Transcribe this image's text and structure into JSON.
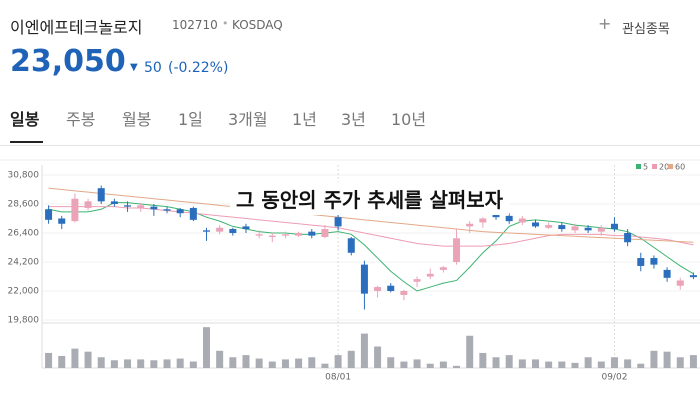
{
  "header": {
    "name": "이엔에프테크놀로지",
    "code": "102710",
    "market": "KOSDAQ",
    "watch": "관심종목",
    "price": "23,050",
    "change": "50",
    "change_pct": "(-0.22%)"
  },
  "tabs": [
    "일봉",
    "주봉",
    "월봉",
    "1일",
    "3개월",
    "1년",
    "3년",
    "10년"
  ],
  "overlay_text": "그 동안의 주가 추세를 살펴보자",
  "chart_data": {
    "type": "candlestick",
    "categories": [
      null,
      null,
      null,
      null,
      null,
      null,
      null,
      null,
      null,
      null,
      null,
      null,
      null,
      null,
      null,
      null,
      null,
      null,
      null,
      null,
      null,
      null,
      "08/01",
      null,
      null,
      null,
      null,
      null,
      null,
      null,
      null,
      null,
      null,
      null,
      null,
      null,
      null,
      null,
      null,
      null,
      null,
      null,
      null,
      "09/02",
      null,
      null,
      null,
      null,
      null,
      null
    ],
    "open": [
      28200,
      27500,
      27300,
      28300,
      29800,
      28800,
      28500,
      28300,
      28400,
      28200,
      28200,
      28300,
      26600,
      26500,
      26700,
      26900,
      26200,
      26100,
      26200,
      26200,
      26500,
      26100,
      27600,
      26000,
      24000,
      22000,
      22400,
      21700,
      22700,
      23100,
      23600,
      24200,
      26900,
      27200,
      27800,
      27700,
      27200,
      27200,
      26800,
      27000,
      26600,
      26800,
      26500,
      27100,
      26400,
      24500,
      24500,
      23600,
      22400,
      23200
    ],
    "high": [
      28500,
      27700,
      29400,
      29000,
      30000,
      29000,
      28800,
      28700,
      28600,
      28400,
      28300,
      28400,
      26800,
      27000,
      26800,
      27100,
      26600,
      26400,
      26500,
      26500,
      26700,
      27000,
      27800,
      26100,
      24300,
      22400,
      22600,
      22100,
      23100,
      23700,
      23900,
      26700,
      27300,
      27600,
      27900,
      27900,
      27700,
      27400,
      27200,
      27200,
      27100,
      27000,
      27000,
      27600,
      26700,
      24900,
      24700,
      23800,
      23000,
      23400
    ],
    "low": [
      27100,
      26700,
      27200,
      28100,
      28600,
      28400,
      28000,
      28000,
      27700,
      27900,
      27600,
      27300,
      25800,
      26300,
      26200,
      26400,
      26000,
      25700,
      26000,
      26100,
      26000,
      26000,
      26600,
      24700,
      20600,
      21500,
      21900,
      21300,
      22300,
      22900,
      23400,
      24000,
      26400,
      26800,
      27400,
      27100,
      27000,
      26800,
      26700,
      26500,
      26400,
      26400,
      26200,
      26500,
      25400,
      23500,
      23700,
      22700,
      22100,
      22900
    ],
    "close": [
      27400,
      27100,
      29000,
      28800,
      28800,
      28600,
      28400,
      28500,
      28200,
      28100,
      27900,
      27400,
      26500,
      26800,
      26400,
      26700,
      26300,
      26200,
      26300,
      26400,
      26200,
      26700,
      26900,
      24900,
      21800,
      22300,
      22000,
      22000,
      22900,
      23300,
      23800,
      26000,
      27100,
      27500,
      27600,
      27300,
      27500,
      26900,
      27000,
      26700,
      26900,
      26600,
      26800,
      26700,
      25700,
      23900,
      24000,
      23000,
      22800,
      23050
    ],
    "up_color": "#eba3b8",
    "down_color": "#2a6ebd",
    "ma": [
      {
        "name": "5",
        "color": "#3cb371",
        "values": [
          28200,
          28000,
          28000,
          28000,
          28200,
          28700,
          28700,
          28600,
          28500,
          28400,
          28200,
          28000,
          27600,
          27300,
          26900,
          26700,
          26500,
          26400,
          26400,
          26300,
          26300,
          26400,
          26500,
          26300,
          25500,
          24500,
          23500,
          22700,
          22000,
          22300,
          22600,
          22800,
          23800,
          24900,
          25800,
          26900,
          27300,
          27400,
          27300,
          27200,
          27000,
          26900,
          26800,
          26700,
          26500,
          26000,
          25300,
          24600,
          23900,
          23300
        ]
      },
      {
        "name": "20",
        "color": "#ee9cb4",
        "values": [
          28400,
          28400,
          28400,
          28400,
          28400,
          28400,
          28300,
          28300,
          28200,
          28100,
          28000,
          27900,
          27800,
          27700,
          27600,
          27500,
          27400,
          27300,
          27200,
          27100,
          27000,
          26900,
          26800,
          26600,
          26400,
          26200,
          26000,
          25800,
          25600,
          25500,
          25400,
          25400,
          25400,
          25400,
          25500,
          25600,
          25800,
          26000,
          26200,
          26300,
          26300,
          26300,
          26300,
          26200,
          26200,
          26100,
          26000,
          25900,
          25700,
          25500
        ]
      },
      {
        "name": "60",
        "color": "#e3a888",
        "values": [
          29800,
          29700,
          29600,
          29500,
          29400,
          29300,
          29200,
          29100,
          29000,
          28900,
          28800,
          28700,
          28600,
          28500,
          28400,
          28300,
          28200,
          28100,
          28000,
          27900,
          27800,
          27700,
          27600,
          27500,
          27400,
          27300,
          27200,
          27100,
          27000,
          26900,
          26800,
          26700,
          26600,
          26500,
          26450,
          26400,
          26350,
          26300,
          26250,
          26200,
          26150,
          26100,
          26050,
          26000,
          25950,
          25900,
          25850,
          25800,
          25750,
          25700
        ]
      }
    ],
    "volume": [
      35,
      28,
      45,
      38,
      25,
      18,
      20,
      20,
      18,
      20,
      22,
      15,
      95,
      40,
      25,
      30,
      22,
      15,
      20,
      22,
      25,
      10,
      30,
      40,
      80,
      50,
      25,
      15,
      20,
      10,
      15,
      5,
      75,
      35,
      25,
      30,
      20,
      20,
      15,
      15,
      12,
      25,
      15,
      25,
      20,
      10,
      40,
      38,
      25,
      30
    ],
    "volume_color": "#a9adb3",
    "volume_ylim": [
      0,
      100
    ],
    "ylim": [
      19800,
      30800
    ],
    "yticks": [
      {
        "value": 30800,
        "label": "30,800"
      },
      {
        "value": 28600,
        "label": "28,600"
      },
      {
        "value": 26400,
        "label": "26,400"
      },
      {
        "value": 24200,
        "label": "24,200"
      },
      {
        "value": 22000,
        "label": "22,000"
      },
      {
        "value": 19800,
        "label": "19,800"
      }
    ],
    "grid": true
  }
}
